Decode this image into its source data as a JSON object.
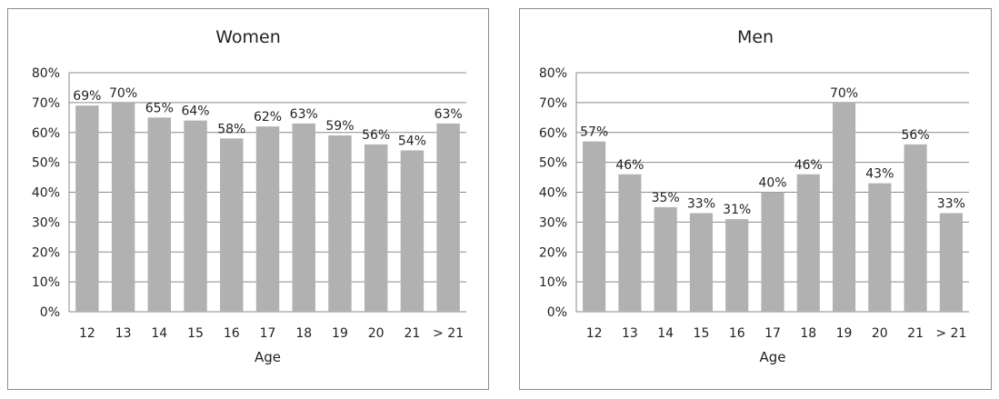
{
  "chart_data": [
    {
      "type": "bar",
      "title": "Women",
      "xlabel": "Age",
      "ylabel": "",
      "categories": [
        "12",
        "13",
        "14",
        "15",
        "16",
        "17",
        "18",
        "19",
        "20",
        "21",
        "> 21"
      ],
      "values": [
        69,
        70,
        65,
        64,
        58,
        62,
        63,
        59,
        56,
        54,
        63
      ],
      "data_labels": [
        "69%",
        "70%",
        "65%",
        "64%",
        "58%",
        "62%",
        "63%",
        "59%",
        "56%",
        "54%",
        "63%"
      ],
      "ylim": [
        0,
        80
      ],
      "yticks": [
        "0%",
        "10%",
        "20%",
        "30%",
        "40%",
        "50%",
        "60%",
        "70%",
        "80%"
      ],
      "grid": true,
      "bar_color": "#b1b1b1"
    },
    {
      "type": "bar",
      "title": "Men",
      "xlabel": "Age",
      "ylabel": "",
      "categories": [
        "12",
        "13",
        "14",
        "15",
        "16",
        "17",
        "18",
        "19",
        "20",
        "21",
        "> 21"
      ],
      "values": [
        57,
        46,
        35,
        33,
        31,
        40,
        46,
        70,
        43,
        56,
        33
      ],
      "data_labels": [
        "57%",
        "46%",
        "35%",
        "33%",
        "31%",
        "40%",
        "46%",
        "70%",
        "43%",
        "56%",
        "33%"
      ],
      "ylim": [
        0,
        80
      ],
      "yticks": [
        "0%",
        "10%",
        "20%",
        "30%",
        "40%",
        "50%",
        "60%",
        "70%",
        "80%"
      ],
      "grid": true,
      "bar_color": "#b1b1b1"
    }
  ]
}
